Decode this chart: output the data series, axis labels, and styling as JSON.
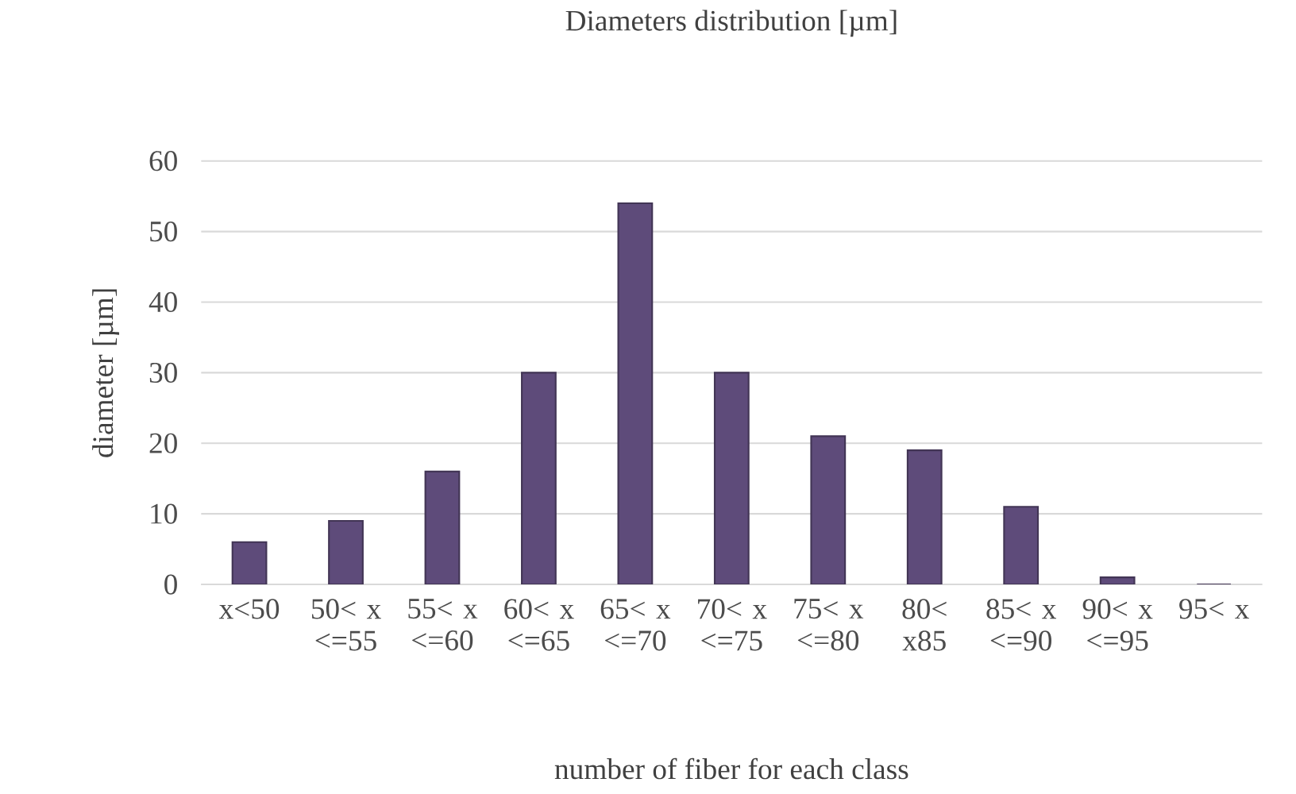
{
  "chart_data": {
    "type": "bar",
    "title": "Diameters distribution [µm]",
    "xlabel": "number of fiber for each class",
    "ylabel": "diameter [µm]",
    "categories": [
      "x<50",
      "50< x <=55",
      "55< x <=60",
      "60< x <=65",
      "65< x <=70",
      "70< x <=75",
      "75< x <=80",
      "80< x85",
      "85< x <=90",
      "90< x <=95",
      "95< x"
    ],
    "values": [
      6,
      9,
      16,
      30,
      54,
      30,
      21,
      19,
      11,
      1,
      0
    ],
    "color": "#5e4b7a",
    "ylim": [
      0,
      60
    ],
    "yticks": [
      0,
      10,
      20,
      30,
      40,
      50,
      60
    ],
    "grid": "y"
  }
}
